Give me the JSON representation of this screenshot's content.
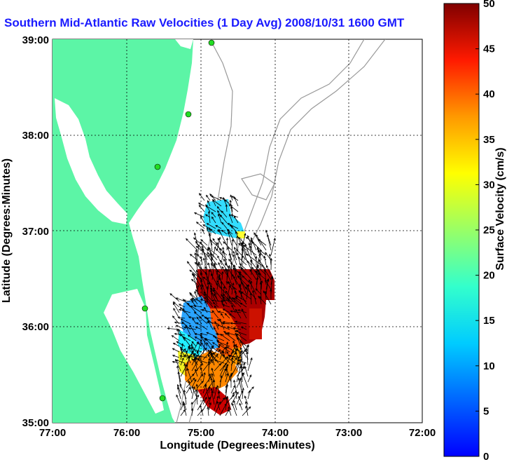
{
  "title": "Southern Mid-Atlantic Raw Velocities (1 Day Avg) 2008/10/31 1600 GMT",
  "xlabel": "Longitude (Degrees:Minutes)",
  "ylabel": "Latitude (Degrees:Minutes)",
  "x_ticks": [
    "77:00",
    "76:00",
    "75:00",
    "74:00",
    "73:00",
    "72:00"
  ],
  "y_ticks": [
    "39:00",
    "38:00",
    "37:00",
    "36:00",
    "35:00"
  ],
  "colorbar": {
    "label": "Surface Velocity (cm/s)",
    "ticks": [
      "50",
      "45",
      "40",
      "35",
      "30",
      "25",
      "20",
      "15",
      "10",
      "5",
      "0"
    ],
    "range": [
      0,
      50
    ]
  },
  "colors": {
    "land": "#5cf5a6",
    "title": "#1a1aff",
    "station": "#22dd22",
    "bathymetry": "#999999"
  },
  "chart_data": {
    "type": "map",
    "title": "Southern Mid-Atlantic Raw Velocities (1 Day Avg) 2008/10/31 1600 GMT",
    "xlabel": "Longitude (Degrees:Minutes)",
    "ylabel": "Latitude (Degrees:Minutes)",
    "xlim": [
      -77,
      -72
    ],
    "ylim": [
      35,
      39
    ],
    "grid": true,
    "colorbar_label": "Surface Velocity (cm/s)",
    "colorbar_range": [
      0,
      50
    ]
  }
}
